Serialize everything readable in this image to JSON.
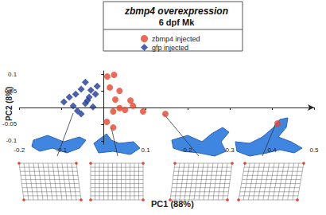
{
  "chart_data": {
    "type": "scatter",
    "title": "zbmp4 overexpression",
    "subtitle": "6 dpf Mk",
    "x_label": "PC1 (88%)",
    "y_label": "PC2 (8%)",
    "xlim": [
      -0.2,
      0.5
    ],
    "ylim": [
      -0.11,
      0.11
    ],
    "xticks": [
      -0.2,
      -0.1,
      0.1,
      0.2,
      0.3,
      0.4,
      0.5
    ],
    "yticks": [
      -0.1,
      -0.05,
      0.05,
      0.1
    ],
    "grid": false,
    "legend": "top",
    "series": [
      {
        "name": "zbmp4 injected",
        "color": "#e8432a",
        "marker": "circle",
        "x": [
          0.009,
          0.025,
          0.015,
          0.038,
          0.028,
          0.023,
          0.038,
          0.051,
          0.07,
          0.064,
          0.008,
          0.094,
          0.147,
          0.413,
          0.023
        ],
        "values": [
          0.093,
          0.098,
          0.06,
          0.05,
          0.024,
          -0.012,
          -0.002,
          -0.007,
          0.005,
          0.021,
          -0.043,
          -0.012,
          -0.019,
          -0.048,
          -0.06
        ]
      },
      {
        "name": "gfp injected",
        "color": "#1f3a9a",
        "marker": "diamond",
        "x": [
          -0.094,
          -0.081,
          -0.066,
          -0.053,
          -0.043,
          -0.072,
          -0.062,
          -0.043,
          -0.034,
          -0.03,
          -0.019,
          -0.025,
          -0.053,
          -0.015,
          -0.038
        ],
        "values": [
          0.017,
          0.031,
          0.04,
          0.055,
          0.076,
          0.005,
          -0.01,
          0.012,
          0.031,
          0.052,
          0.04,
          0.002,
          -0.019,
          0.064,
          0.021
        ]
      }
    ]
  }
}
